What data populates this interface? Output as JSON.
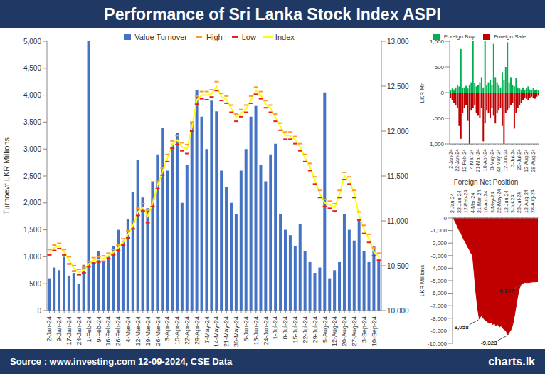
{
  "title": "Performance of Sri Lanka Stock Index ASPI",
  "source": "Source : www.investing.com 12-09-2024, CSE Data",
  "logo": "charts.lk",
  "chart_data": [
    {
      "type": "bar",
      "ylabel": "Turnoevr LKR Millions",
      "legend": "top",
      "grid": false,
      "categories": [
        "2-Jan-24",
        null,
        "9-Jan-24",
        null,
        "17-Jan-24",
        null,
        "24-Jan-24",
        null,
        "1-Feb-24",
        null,
        "9-Feb-24",
        null,
        "16-Feb-24",
        null,
        "26-Feb-24",
        null,
        "4-Mar-24",
        null,
        "12-Mar-24",
        null,
        "19-Mar-24",
        null,
        "26-Mar-24",
        null,
        "3-Apr-24",
        null,
        "10-Apr-24",
        null,
        "22-Apr-24",
        null,
        "29-Apr-24",
        null,
        "7-May-24",
        null,
        "14-May-24",
        null,
        "21-May-24",
        null,
        "30-May-24",
        null,
        "6-Jun-24",
        null,
        "13-Jun-24",
        null,
        "24-Jun-24",
        null,
        "1-Jul-24",
        null,
        "8-Jul-24",
        null,
        "15-Jul-24",
        null,
        "22-Jul-24",
        null,
        "29-Jul-24",
        null,
        "5-Aug-24",
        null,
        "12-Aug-24",
        null,
        "20-Aug-24",
        null,
        "27-Aug-24",
        null,
        "3-Sep-24",
        null,
        "10-Sep-24",
        null
      ],
      "ylim": [
        0,
        5000
      ],
      "yticks": [
        0,
        500,
        {
          "value": 1000,
          "label": "1,000"
        },
        {
          "value": 1500,
          "label": "1,500"
        },
        {
          "value": 2000,
          "label": "2,000"
        },
        {
          "value": 2500,
          "label": "2,500"
        },
        {
          "value": 3000,
          "label": "3,000"
        },
        {
          "value": 3500,
          "label": "3,500"
        },
        {
          "value": 4000,
          "label": "4,000"
        },
        {
          "value": 4500,
          "label": "4,500"
        },
        {
          "value": 5000,
          "label": "5,000"
        }
      ],
      "y2lim": [
        10000,
        13000
      ],
      "y2ticks": [
        {
          "value": 10000,
          "label": "10,000"
        },
        {
          "value": 10500,
          "label": "10,500"
        },
        {
          "value": 11000,
          "label": "11,000"
        },
        {
          "value": 11500,
          "label": "11,500"
        },
        {
          "value": 12000,
          "label": "12,000"
        },
        {
          "value": 12500,
          "label": "12,500"
        },
        {
          "value": 13000,
          "label": "13,000"
        }
      ],
      "series": [
        {
          "name": "Value Turnover",
          "type": "bar",
          "color": "#4472c4",
          "values": [
            600,
            800,
            750,
            1000,
            650,
            700,
            500,
            850,
            5000,
            900,
            1100,
            900,
            1000,
            1200,
            1500,
            1300,
            1700,
            2200,
            2800,
            2100,
            1900,
            2400,
            2900,
            3400,
            2600,
            3100,
            3300,
            2000,
            2700,
            3500,
            4100,
            3600,
            3000,
            3900,
            3700,
            2600,
            2300,
            2000,
            1800,
            2600,
            3000,
            3600,
            3800,
            2700,
            2400,
            2900,
            3100,
            1800,
            1500,
            1400,
            1200,
            1600,
            1100,
            900,
            700,
            800,
            4050,
            600,
            750,
            900,
            1800,
            1500,
            1300,
            1700,
            1100,
            900,
            1200,
            950
          ]
        },
        {
          "name": "High",
          "type": "scatter",
          "marker": "dash",
          "axis": "y2",
          "color": "#ff9a2e",
          "values": [
            10680,
            10730,
            10750,
            10680,
            10600,
            10500,
            10460,
            10480,
            10550,
            10590,
            10600,
            10610,
            10640,
            10680,
            10730,
            10800,
            10890,
            10990,
            11140,
            11190,
            11120,
            11240,
            11440,
            11590,
            11740,
            11890,
            11950,
            11870,
            11850,
            12100,
            12390,
            12440,
            12440,
            12460,
            12550,
            12420,
            12390,
            12290,
            12190,
            12240,
            12290,
            12390,
            12490,
            12440,
            12340,
            12290,
            12190,
            12090,
            11990,
            11990,
            11940,
            11860,
            11740,
            11640,
            11490,
            11340,
            11240,
            11220,
            11190,
            11340,
            11540,
            11490,
            11340,
            11100,
            10950,
            10850,
            10700,
            10640
          ]
        },
        {
          "name": "Low",
          "type": "scatter",
          "marker": "dash",
          "axis": "y2",
          "color": "#e8201c",
          "values": [
            10620,
            10670,
            10690,
            10620,
            10520,
            10440,
            10400,
            10420,
            10490,
            10530,
            10540,
            10550,
            10580,
            10620,
            10670,
            10730,
            10810,
            10910,
            11060,
            11110,
            10980,
            11160,
            11360,
            11510,
            11660,
            11810,
            11850,
            11780,
            11750,
            12000,
            12300,
            12360,
            12350,
            12380,
            12450,
            12340,
            12310,
            12210,
            12110,
            12160,
            12210,
            12310,
            12410,
            12360,
            12260,
            12210,
            12110,
            12010,
            11910,
            11910,
            11860,
            11780,
            11660,
            11560,
            11410,
            11260,
            11160,
            11140,
            11110,
            11260,
            11460,
            11410,
            11260,
            11010,
            10860,
            10760,
            10610,
            10560
          ]
        },
        {
          "name": "Index",
          "type": "line",
          "axis": "y2",
          "color": "#ffff00",
          "values": [
            10650,
            10700,
            10720,
            10650,
            10560,
            10470,
            10430,
            10450,
            10520,
            10560,
            10570,
            10580,
            10610,
            10650,
            10700,
            10760,
            10850,
            10950,
            11100,
            11150,
            11050,
            11200,
            11400,
            11550,
            11700,
            11850,
            11900,
            11820,
            11800,
            12050,
            12350,
            12400,
            12400,
            12420,
            12500,
            12380,
            12350,
            12250,
            12150,
            12200,
            12250,
            12350,
            12450,
            12400,
            12300,
            12250,
            12150,
            12050,
            11950,
            11950,
            11900,
            11820,
            11700,
            11600,
            11450,
            11300,
            11200,
            11180,
            11150,
            11300,
            11500,
            11450,
            11300,
            11050,
            10900,
            10800,
            10650,
            10600
          ]
        }
      ]
    },
    {
      "type": "bar",
      "ylabel": "LKR Mn",
      "legend": "top",
      "grid": false,
      "stacked": true,
      "categories": [
        "2-Jan-24",
        null,
        null,
        null,
        "22-Jan-24",
        null,
        null,
        null,
        "12-Feb-24",
        null,
        null,
        null,
        "4-Mar-24",
        null,
        null,
        null,
        "21-Mar-24",
        null,
        null,
        null,
        "10-Apr-24",
        null,
        null,
        null,
        "3-May-24",
        null,
        null,
        null,
        "22-May-24",
        null,
        null,
        null,
        "12-Jun-24",
        null,
        null,
        null,
        "3-Jul-24",
        null,
        null,
        null,
        "23-Jul-24",
        null,
        null,
        null,
        "12-Aug-24",
        null,
        null,
        null,
        "28-Aug-24",
        null,
        null,
        null
      ],
      "ylim": [
        -1000,
        1000
      ],
      "yticks": [
        {
          "value": -1000,
          "label": "-1,000"
        },
        -500,
        0,
        500,
        {
          "value": 1000,
          "label": "1,000"
        }
      ],
      "series": [
        {
          "name": "Foreign Buy",
          "color": "#00b050",
          "values": [
            50,
            80,
            60,
            100,
            150,
            120,
            850,
            90,
            100,
            130,
            80,
            150,
            200,
            1000,
            180,
            120,
            150,
            200,
            300,
            100,
            1000,
            150,
            200,
            250,
            150,
            950,
            300,
            200,
            150,
            100,
            400,
            250,
            500,
            980,
            200,
            300,
            150,
            120,
            280,
            100,
            80,
            60,
            100,
            50,
            80,
            120,
            60,
            40,
            90,
            50,
            60,
            40
          ]
        },
        {
          "name": "Foreign Sale",
          "color": "#c00000",
          "values": [
            -100,
            -150,
            -200,
            -250,
            -300,
            -650,
            -900,
            -400,
            -300,
            -250,
            -550,
            -1000,
            -350,
            -300,
            -250,
            -400,
            -450,
            -500,
            -300,
            -950,
            -600,
            -350,
            -400,
            -500,
            -300,
            -450,
            -600,
            -400,
            -350,
            -300,
            -650,
            -1000,
            -400,
            -350,
            -300,
            -250,
            -200,
            -700,
            -400,
            -300,
            -250,
            -200,
            -150,
            -100,
            -120,
            -150,
            -100,
            -80,
            -100,
            -120,
            -80,
            -60
          ]
        }
      ]
    },
    {
      "type": "area",
      "title": "Foreign Net Position",
      "ylabel": "LKR Millions",
      "grid": false,
      "categories": [
        "2-Jan-24",
        null,
        null,
        null,
        "22-Jan-24",
        null,
        null,
        null,
        "12-Feb-24",
        null,
        null,
        null,
        "4-Mar-24",
        null,
        null,
        null,
        "21-Mar-24",
        null,
        null,
        null,
        "10-Apr-24",
        null,
        null,
        null,
        "3-May-24",
        null,
        null,
        null,
        "22-May-24",
        null,
        null,
        null,
        "12-Jun-24",
        null,
        null,
        null,
        "3-Jul-24",
        null,
        null,
        null,
        "23-Jul-24",
        null,
        null,
        null,
        "12-Aug-24",
        null,
        null,
        null,
        "28-Aug-24",
        null,
        null,
        null
      ],
      "ylim": [
        -10000,
        0
      ],
      "yticks": [
        0,
        {
          "value": -1000,
          "label": "-1,000"
        },
        {
          "value": -2000,
          "label": "-2,000"
        },
        {
          "value": -3000,
          "label": "-3,000"
        },
        {
          "value": -4000,
          "label": "-4,000"
        },
        {
          "value": -5000,
          "label": "-5,000"
        },
        {
          "value": -6000,
          "label": "-6,000"
        },
        {
          "value": -7000,
          "label": "-7,000"
        },
        {
          "value": -8000,
          "label": "-8,000"
        },
        {
          "value": -9000,
          "label": "-9,000"
        },
        {
          "value": -10000,
          "label": "-10,000"
        }
      ],
      "color": "#c00000",
      "values": [
        0,
        -150,
        -400,
        -700,
        -1000,
        -1200,
        -1500,
        -1800,
        -2000,
        -2300,
        -2500,
        -2800,
        -3000,
        -4500,
        -6000,
        -7200,
        -8058,
        -7800,
        -7900,
        -8100,
        -8200,
        -8300,
        -8400,
        -8350,
        -8500,
        -8400,
        -8600,
        -8500,
        -8700,
        -8600,
        -8800,
        -8900,
        -9000,
        -9323,
        -9100,
        -8900,
        -8500,
        -7800,
        -7000,
        -6200,
        -5600,
        -5300,
        -5200,
        -5147,
        -5150,
        -5160,
        -5140,
        -5120,
        -5100,
        -5100,
        -5090,
        -5080
      ],
      "value_labels": [
        null,
        null,
        null,
        null,
        null,
        null,
        null,
        null,
        null,
        null,
        null,
        null,
        null,
        null,
        null,
        null,
        "-8,058",
        null,
        null,
        null,
        null,
        null,
        null,
        null,
        null,
        null,
        null,
        null,
        null,
        null,
        null,
        null,
        null,
        "-9,323",
        null,
        null,
        null,
        null,
        null,
        null,
        null,
        null,
        null,
        "-5,147",
        null,
        null,
        null,
        null,
        null,
        null,
        null,
        null
      ]
    }
  ]
}
